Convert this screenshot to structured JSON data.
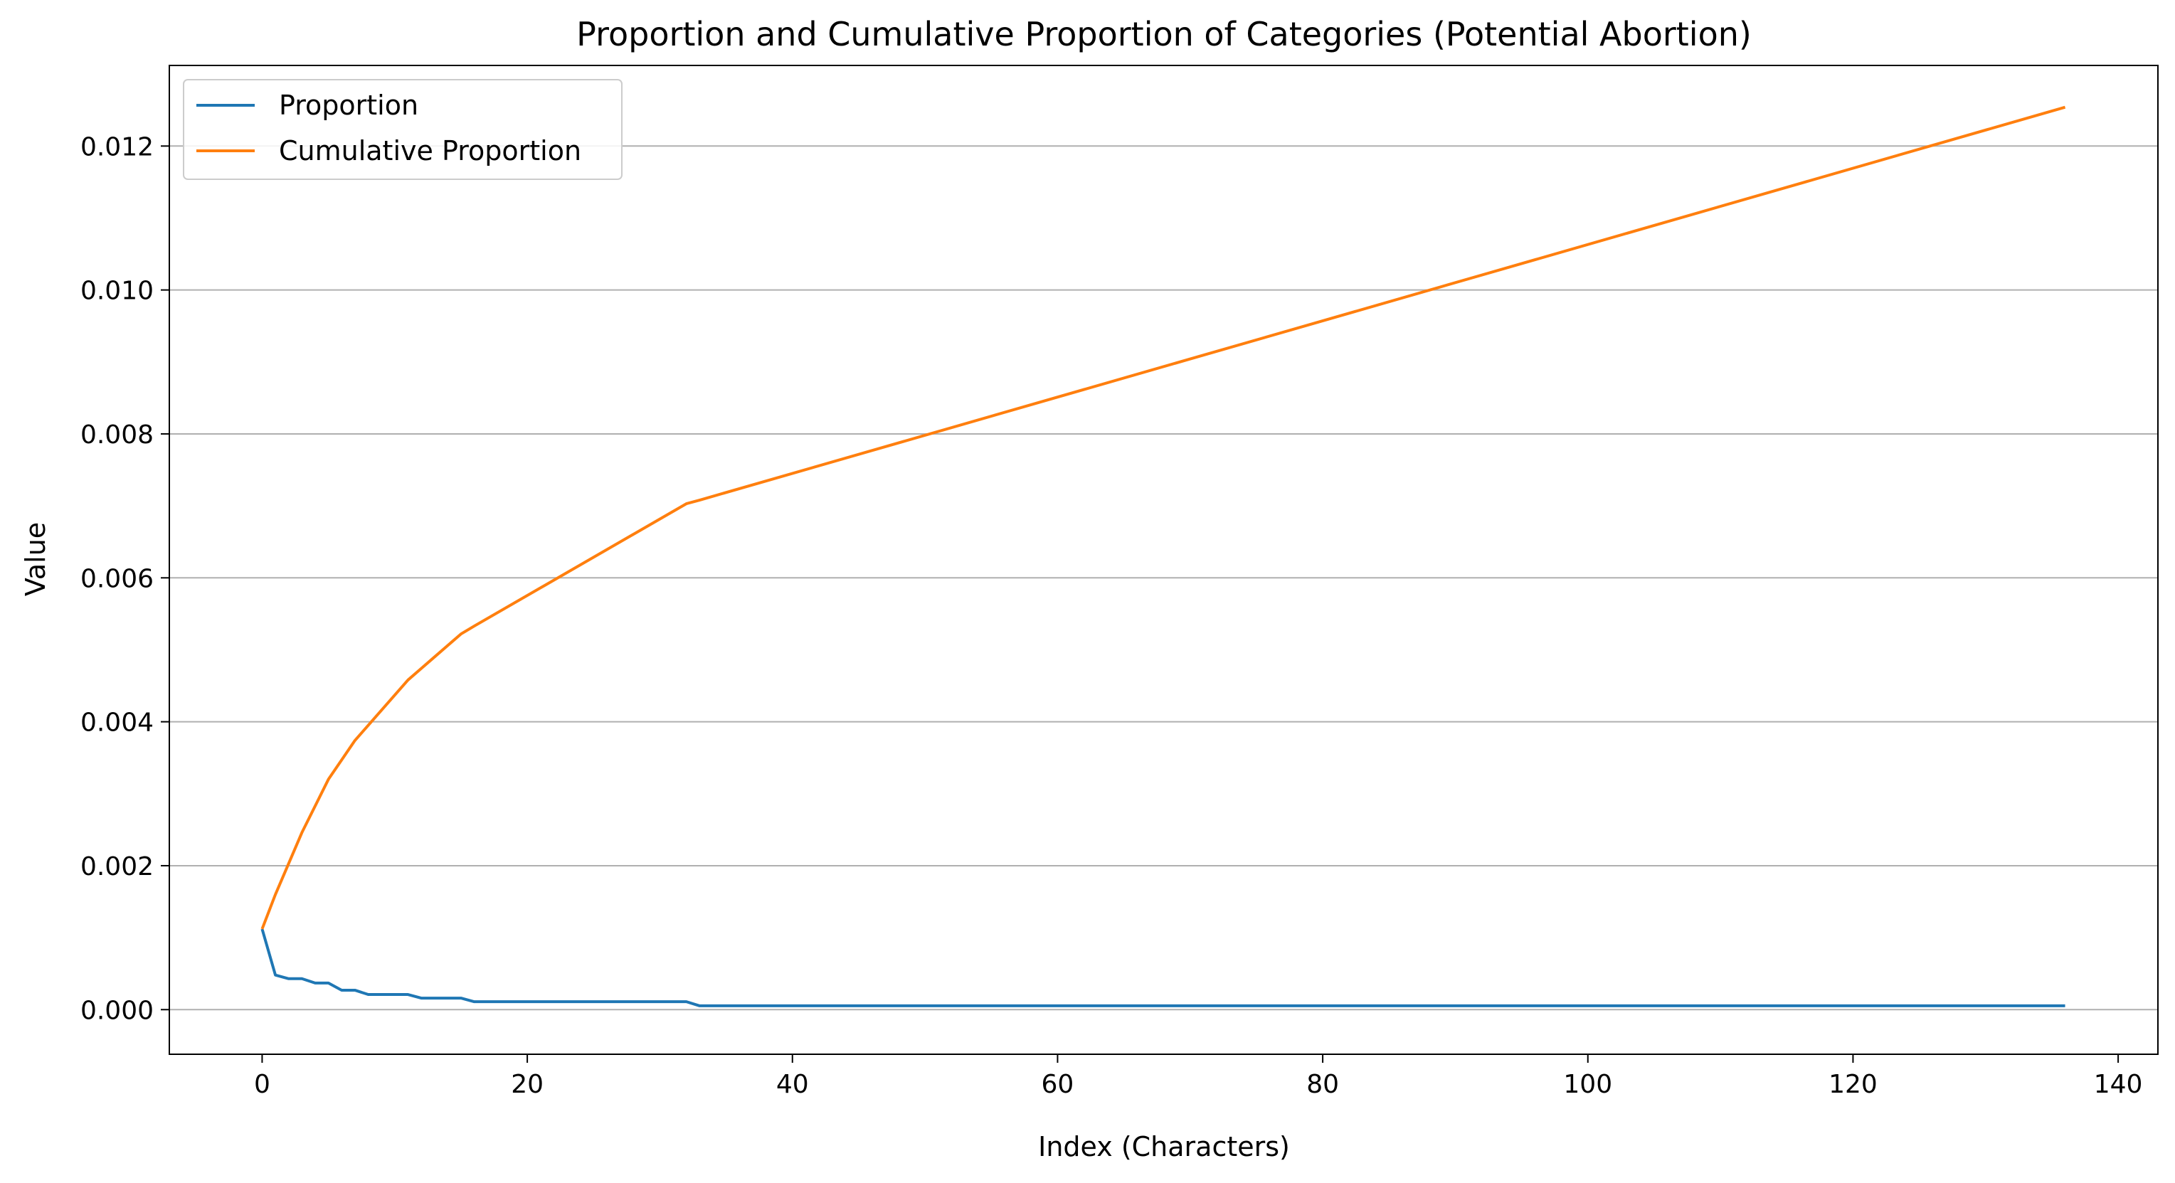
{
  "chart_data": {
    "type": "line",
    "title": "Proportion and Cumulative Proportion of Categories (Potential Abortion)",
    "xlabel": "Index (Characters)",
    "ylabel": "Value",
    "xlim": [
      -7,
      143
    ],
    "ylim": [
      -0.00062,
      0.01312
    ],
    "xticks": [
      0,
      20,
      40,
      60,
      80,
      100,
      120,
      140
    ],
    "xtick_labels": [
      "0",
      "20",
      "40",
      "60",
      "80",
      "100",
      "120",
      "140"
    ],
    "yticks": [
      0.0,
      0.002,
      0.004,
      0.006,
      0.008,
      0.01,
      0.012
    ],
    "ytick_labels": [
      "0.000",
      "0.002",
      "0.004",
      "0.006",
      "0.008",
      "0.010",
      "0.012"
    ],
    "grid": "y-major",
    "legend_position": "top-left",
    "series": [
      {
        "name": "Proportion",
        "color": "#1f77b4",
        "points": [
          [
            0,
            0.00112
          ],
          [
            1,
            0.00048
          ],
          [
            2,
            0.00043
          ],
          [
            3,
            0.00043
          ],
          [
            4,
            0.00037
          ],
          [
            5,
            0.00037
          ],
          [
            6,
            0.00027
          ],
          [
            7,
            0.00027
          ],
          [
            8,
            0.00021
          ],
          [
            9,
            0.00021
          ],
          [
            10,
            0.00021
          ],
          [
            11,
            0.00021
          ],
          [
            12,
            0.00016
          ],
          [
            13,
            0.00016
          ],
          [
            14,
            0.00016
          ],
          [
            15,
            0.00016
          ],
          [
            16,
            0.00011
          ],
          [
            17,
            0.00011
          ],
          [
            18,
            0.00011
          ],
          [
            19,
            0.00011
          ],
          [
            20,
            0.00011
          ],
          [
            21,
            0.00011
          ],
          [
            22,
            0.00011
          ],
          [
            23,
            0.00011
          ],
          [
            24,
            0.00011
          ],
          [
            25,
            0.00011
          ],
          [
            26,
            0.00011
          ],
          [
            27,
            0.00011
          ],
          [
            28,
            0.00011
          ],
          [
            29,
            0.00011
          ],
          [
            30,
            0.00011
          ],
          [
            31,
            0.00011
          ],
          [
            32,
            0.00011
          ],
          [
            33,
            5.3e-05
          ],
          [
            136,
            5.3e-05
          ]
        ]
      },
      {
        "name": "Cumulative Proportion",
        "color": "#ff7f0e",
        "points": [
          [
            0,
            0.00112
          ],
          [
            1,
            0.0016
          ],
          [
            2,
            0.00203
          ],
          [
            3,
            0.00246
          ],
          [
            4,
            0.00283
          ],
          [
            5,
            0.0032
          ],
          [
            6,
            0.00347
          ],
          [
            7,
            0.00374
          ],
          [
            8,
            0.00395
          ],
          [
            9,
            0.00416
          ],
          [
            10,
            0.00437
          ],
          [
            11,
            0.00458
          ],
          [
            12,
            0.00474
          ],
          [
            13,
            0.0049
          ],
          [
            14,
            0.00506
          ],
          [
            15,
            0.00522
          ],
          [
            16,
            0.00533
          ],
          [
            32,
            0.00703
          ],
          [
            33,
            0.00708
          ],
          [
            136,
            0.01254
          ]
        ]
      }
    ]
  }
}
